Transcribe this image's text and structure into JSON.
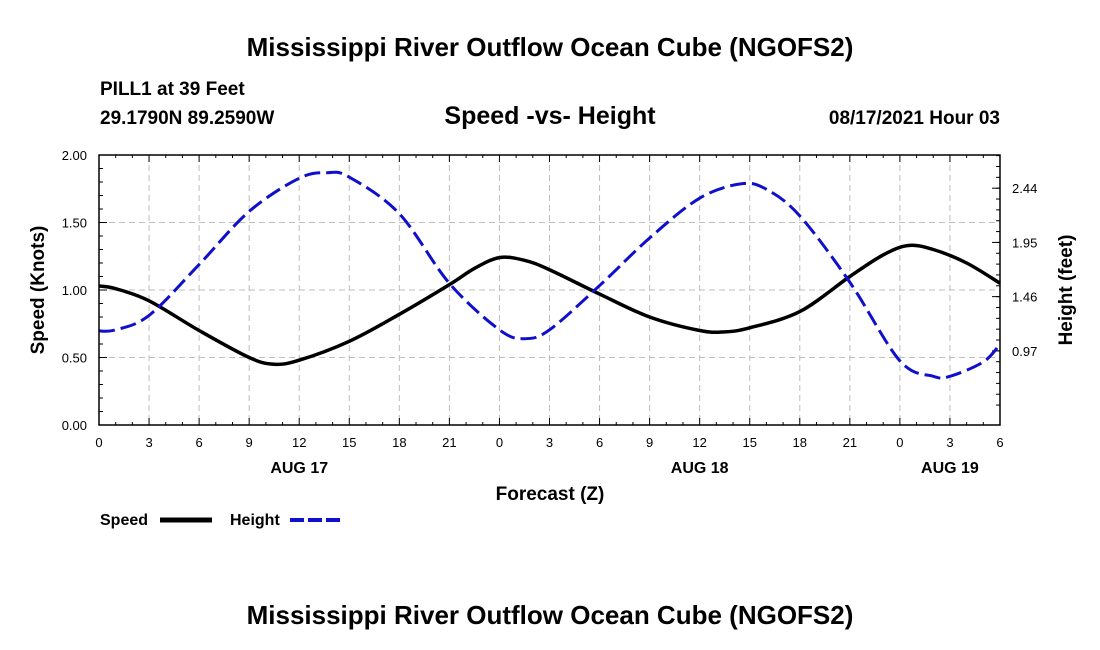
{
  "header": {
    "title": "Mississippi River Outflow Ocean Cube (NGOFS2)",
    "station": "PILL1 at 39 Feet",
    "coords": "29.1790N  89.2590W",
    "subtitle": "Speed -vs- Height",
    "datetime": "08/17/2021 Hour 03"
  },
  "footer": {
    "title": "Mississippi River Outflow Ocean Cube (NGOFS2)"
  },
  "legend": {
    "speed_label": "Speed",
    "height_label": "Height",
    "speed_color": "#000000",
    "height_color": "#1010cc"
  },
  "chart_data": {
    "type": "line",
    "title": "Speed -vs- Height",
    "xlabel": "Forecast (Z)",
    "ylabel": "Speed (Knots)",
    "y2label": "Height (feet)",
    "x_unit": "forecast hours from 08/17 00Z",
    "xlim": [
      0,
      54
    ],
    "x_ticks": [
      0,
      3,
      6,
      9,
      12,
      15,
      18,
      21,
      24,
      27,
      30,
      33,
      36,
      39,
      42,
      45,
      48,
      51,
      54
    ],
    "x_tick_labels": [
      "0",
      "3",
      "6",
      "9",
      "12",
      "15",
      "18",
      "21",
      "0",
      "3",
      "6",
      "9",
      "12",
      "15",
      "18",
      "21",
      "0",
      "3",
      "6"
    ],
    "date_labels": [
      {
        "x": 12,
        "label": "AUG 17"
      },
      {
        "x": 36,
        "label": "AUG 18"
      },
      {
        "x": 51,
        "label": "AUG 19"
      }
    ],
    "ylim": [
      0,
      2.0
    ],
    "y_ticks": [
      0,
      0.5,
      1.0,
      1.5,
      2.0
    ],
    "y_tick_labels": [
      "0.00",
      "0.50",
      "1.00",
      "1.50",
      "2.00"
    ],
    "y2lim": [
      0.3,
      2.74
    ],
    "y2_ticks": [
      0.97,
      1.46,
      1.95,
      2.44
    ],
    "y2_tick_labels": [
      "0.97",
      "1.46",
      "1.95",
      "2.44"
    ],
    "grid": true,
    "legend_position": "bottom-left",
    "series": [
      {
        "name": "Speed",
        "axis": "left",
        "style": "solid",
        "color": "#000000",
        "x": [
          0,
          1,
          3,
          6,
          9,
          10.5,
          12,
          15,
          18,
          21,
          22.5,
          24,
          25.5,
          27,
          30,
          33,
          36,
          37.5,
          39,
          42,
          45,
          47,
          48.5,
          50,
          52,
          54
        ],
        "y": [
          1.03,
          1.01,
          0.92,
          0.7,
          0.5,
          0.45,
          0.48,
          0.62,
          0.82,
          1.04,
          1.16,
          1.24,
          1.22,
          1.15,
          0.97,
          0.8,
          0.7,
          0.69,
          0.72,
          0.84,
          1.1,
          1.26,
          1.33,
          1.3,
          1.2,
          1.05
        ]
      },
      {
        "name": "Height",
        "axis": "right",
        "style": "dashed",
        "color": "#1010cc",
        "x": [
          0,
          1,
          3,
          6,
          9,
          12,
          13.7,
          15,
          18,
          21,
          24,
          25.5,
          27,
          30,
          33,
          36,
          38.5,
          40,
          42,
          45,
          48,
          50,
          51,
          53,
          54
        ],
        "y": [
          1.15,
          1.16,
          1.29,
          1.75,
          2.23,
          2.53,
          2.58,
          2.54,
          2.21,
          1.58,
          1.16,
          1.08,
          1.16,
          1.56,
          1.99,
          2.35,
          2.48,
          2.43,
          2.19,
          1.59,
          0.88,
          0.74,
          0.74,
          0.87,
          1.03
        ]
      }
    ]
  }
}
